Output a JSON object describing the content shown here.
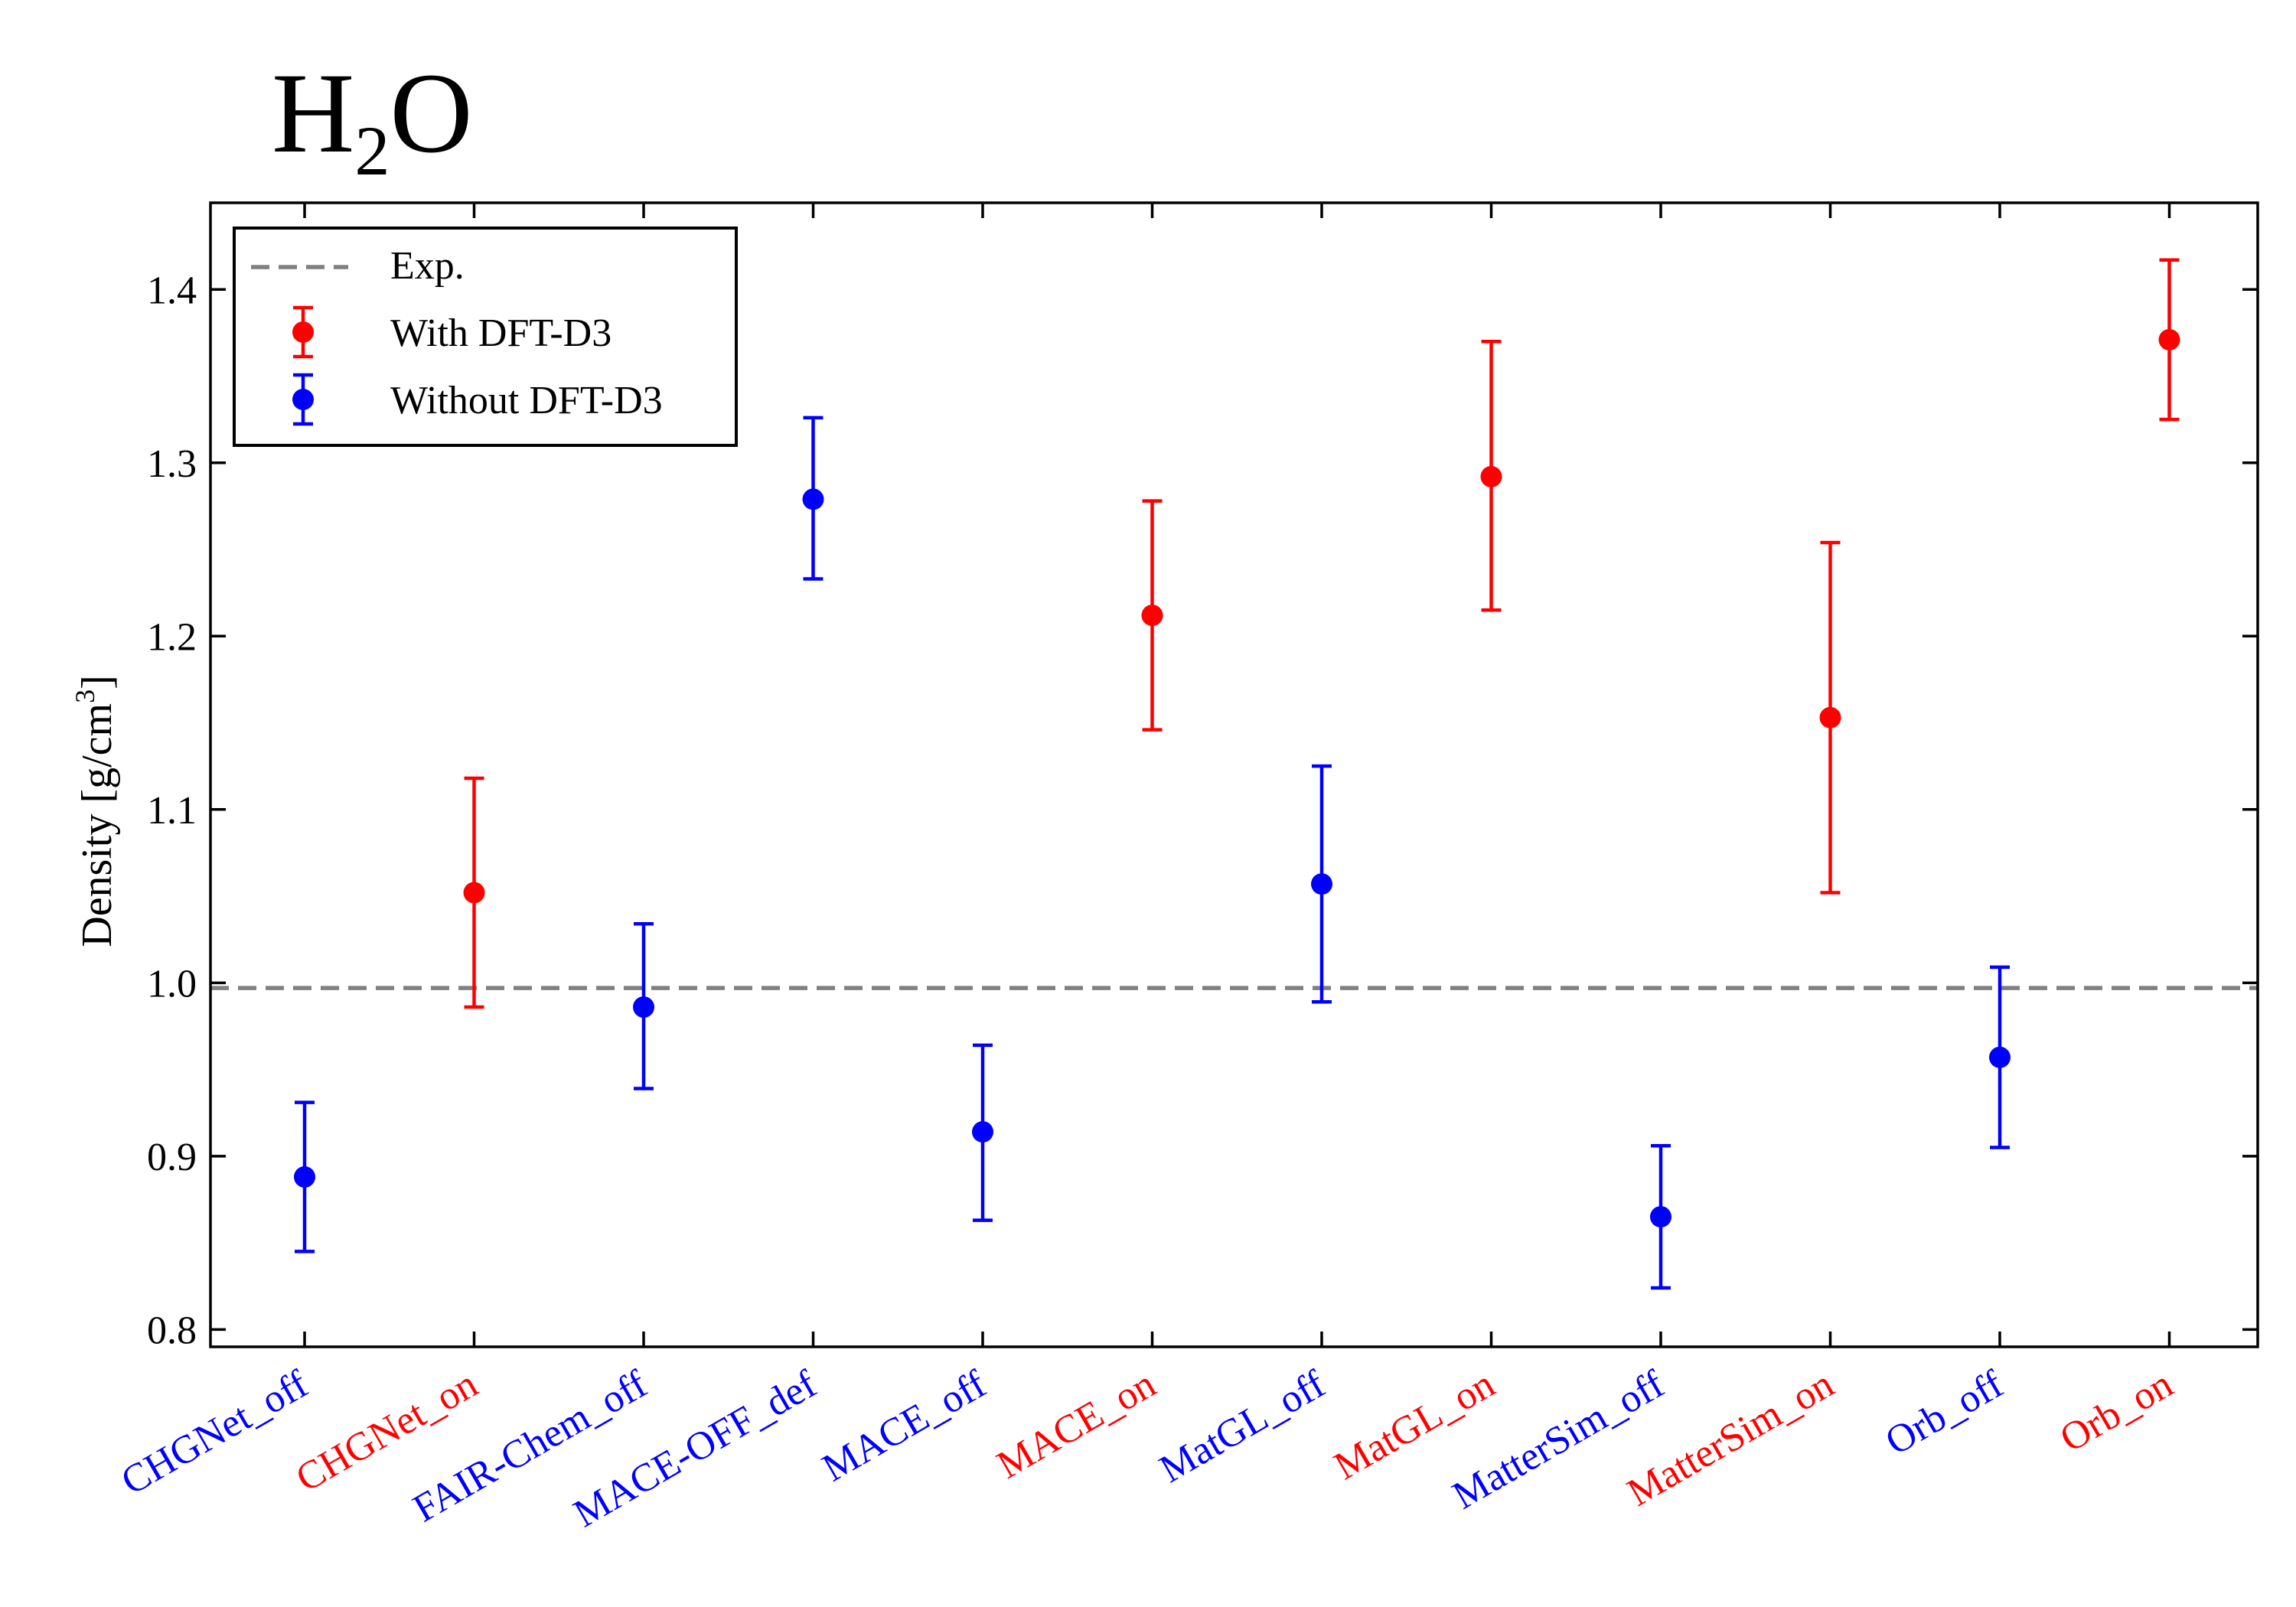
{
  "chart_data": {
    "type": "errorbar",
    "title": {
      "base": "H",
      "sub": "2",
      "rest": "O"
    },
    "ylabel": {
      "base": "Density  [g/cm",
      "sup": "3",
      "end": "]"
    },
    "xlabel": "",
    "ylim": [
      0.79,
      1.45
    ],
    "yticks": [
      0.8,
      0.9,
      1.0,
      1.1,
      1.2,
      1.3,
      1.4
    ],
    "ytick_labels": [
      "0.8",
      "0.9",
      "1.0",
      "1.1",
      "1.2",
      "1.3",
      "1.4"
    ],
    "reference_line": {
      "name": "Exp.",
      "value": 0.997,
      "color": "#808080"
    },
    "legend": {
      "location": "top-left",
      "entries": [
        {
          "label": "Exp.",
          "kind": "dashed-line",
          "color": "#808080"
        },
        {
          "label": "With DFT-D3",
          "kind": "errorbar",
          "color": "#ff0000"
        },
        {
          "label": "Without DFT-D3",
          "kind": "errorbar",
          "color": "#0000ff"
        }
      ]
    },
    "colors": {
      "with_d3": "#ff0000",
      "without_d3": "#0000ff"
    },
    "points": [
      {
        "label": "CHGNet_off",
        "group": "without_d3",
        "value": 0.888,
        "low": 0.845,
        "high": 0.931
      },
      {
        "label": "CHGNet_on",
        "group": "with_d3",
        "value": 1.052,
        "low": 0.986,
        "high": 1.118
      },
      {
        "label": "FAIR-Chem_off",
        "group": "without_d3",
        "value": 0.986,
        "low": 0.939,
        "high": 1.034
      },
      {
        "label": "MACE-OFF_def",
        "group": "without_d3",
        "value": 1.279,
        "low": 1.233,
        "high": 1.326
      },
      {
        "label": "MACE_off",
        "group": "without_d3",
        "value": 0.914,
        "low": 0.863,
        "high": 0.964
      },
      {
        "label": "MACE_on",
        "group": "with_d3",
        "value": 1.212,
        "low": 1.146,
        "high": 1.278
      },
      {
        "label": "MatGL_off",
        "group": "without_d3",
        "value": 1.057,
        "low": 0.989,
        "high": 1.125
      },
      {
        "label": "MatGL_on",
        "group": "with_d3",
        "value": 1.292,
        "low": 1.215,
        "high": 1.37
      },
      {
        "label": "MatterSim_off",
        "group": "without_d3",
        "value": 0.865,
        "low": 0.824,
        "high": 0.906
      },
      {
        "label": "MatterSim_on",
        "group": "with_d3",
        "value": 1.153,
        "low": 1.052,
        "high": 1.254
      },
      {
        "label": "Orb_off",
        "group": "without_d3",
        "value": 0.957,
        "low": 0.905,
        "high": 1.009
      },
      {
        "label": "Orb_on",
        "group": "with_d3",
        "value": 1.371,
        "low": 1.325,
        "high": 1.417
      }
    ]
  }
}
